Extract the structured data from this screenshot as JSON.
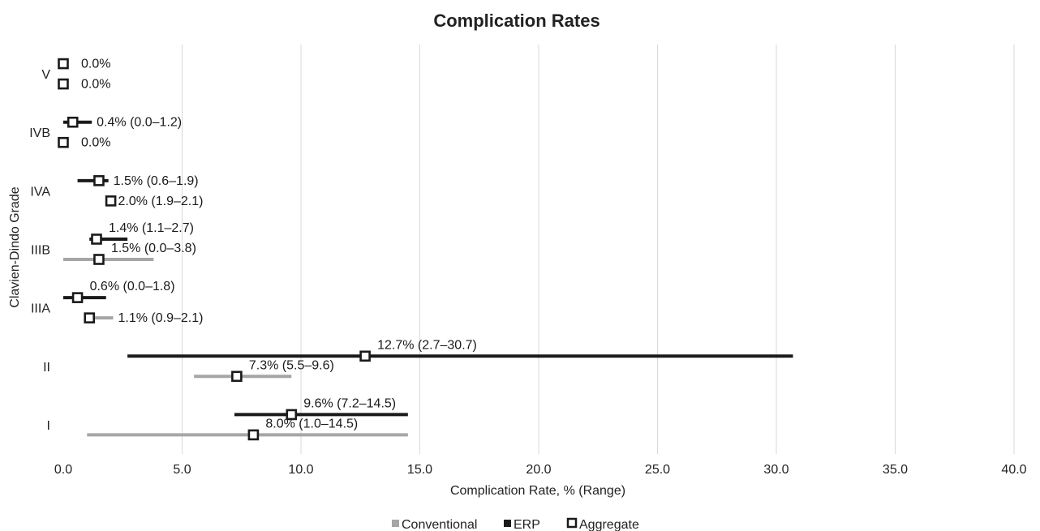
{
  "chart_data": {
    "type": "forest",
    "title": "Complication Rates",
    "xlabel": "Complication Rate, % (Range)",
    "ylabel": "Clavien-Dindo Grade",
    "xlim": [
      0,
      40
    ],
    "xticks": [
      "0.0",
      "5.0",
      "10.0",
      "15.0",
      "20.0",
      "25.0",
      "30.0",
      "35.0",
      "40.0"
    ],
    "grid": "vertical",
    "legend_position": "bottom",
    "colors": {
      "Conventional": "#a6a6a6",
      "ERP": "#1a1a1a",
      "Aggregate": "#1a1a1a"
    },
    "legend": [
      "Conventional",
      "ERP",
      "Aggregate"
    ],
    "categories": [
      "V",
      "IVB",
      "IVA",
      "IIIB",
      "IIIA",
      "II",
      "I"
    ],
    "series": [
      {
        "name": "ERP",
        "points": [
          {
            "category": "V",
            "value": 0.0,
            "low": null,
            "high": null,
            "label": "0.0%"
          },
          {
            "category": "IVB",
            "value": 0.4,
            "low": 0.0,
            "high": 1.2,
            "label": "0.4% (0.0–1.2)"
          },
          {
            "category": "IVA",
            "value": 1.5,
            "low": 0.6,
            "high": 1.9,
            "label": "1.5% (0.6–1.9)"
          },
          {
            "category": "IIIB",
            "value": 1.4,
            "low": 1.1,
            "high": 2.7,
            "label": "1.4% (1.1–2.7)"
          },
          {
            "category": "IIIA",
            "value": 0.6,
            "low": 0.0,
            "high": 1.8,
            "label": "0.6% (0.0–1.8)"
          },
          {
            "category": "II",
            "value": 12.7,
            "low": 2.7,
            "high": 30.7,
            "label": "12.7% (2.7–30.7)"
          },
          {
            "category": "I",
            "value": 9.6,
            "low": 7.2,
            "high": 14.5,
            "label": "9.6% (7.2–14.5)"
          }
        ]
      },
      {
        "name": "Conventional",
        "points": [
          {
            "category": "V",
            "value": 0.0,
            "low": null,
            "high": null,
            "label": "0.0%"
          },
          {
            "category": "IVB",
            "value": 0.0,
            "low": null,
            "high": null,
            "label": "0.0%"
          },
          {
            "category": "IVA",
            "value": 2.0,
            "low": 1.9,
            "high": 2.1,
            "label": "2.0% (1.9–2.1)"
          },
          {
            "category": "IIIB",
            "value": 1.5,
            "low": 0.0,
            "high": 3.8,
            "label": "1.5% (0.0–3.8)"
          },
          {
            "category": "IIIA",
            "value": 1.1,
            "low": 0.9,
            "high": 2.1,
            "label": "1.1% (0.9–2.1)"
          },
          {
            "category": "II",
            "value": 7.3,
            "low": 5.5,
            "high": 9.6,
            "label": "7.3% (5.5–9.6)"
          },
          {
            "category": "I",
            "value": 8.0,
            "low": 1.0,
            "high": 14.5,
            "label": "8.0% (1.0–14.5)"
          }
        ]
      }
    ]
  }
}
